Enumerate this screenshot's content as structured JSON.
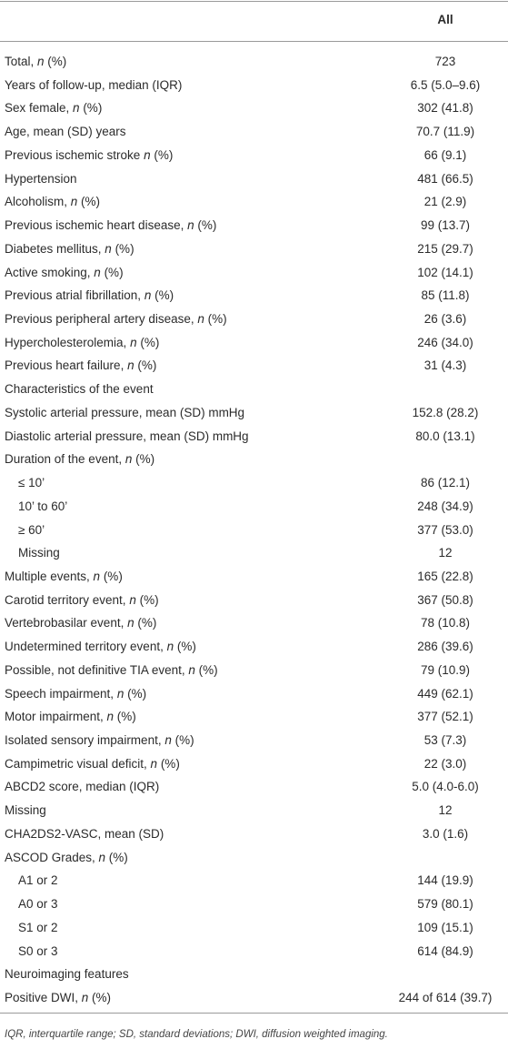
{
  "table": {
    "header": [
      "",
      "All"
    ],
    "rows": [
      [
        "Total, n (%)",
        "723"
      ],
      [
        "Years of follow-up, median (IQR)",
        "6.5 (5.0–9.6)"
      ],
      [
        "Sex female, n (%)",
        "302 (41.8)"
      ],
      [
        "Age, mean (SD) years",
        "70.7 (11.9)"
      ],
      [
        "Previous ischemic stroke n (%)",
        "66 (9.1)"
      ],
      [
        "Hypertension",
        "481 (66.5)"
      ],
      [
        "Alcoholism, n (%)",
        "21 (2.9)"
      ],
      [
        "Previous ischemic heart disease, n (%)",
        "99 (13.7)"
      ],
      [
        "Diabetes mellitus, n (%)",
        "215 (29.7)"
      ],
      [
        "Active smoking, n (%)",
        "102 (14.1)"
      ],
      [
        "Previous atrial fibrillation, n (%)",
        "85 (11.8)"
      ],
      [
        "Previous peripheral artery disease, n (%)",
        "26 (3.6)"
      ],
      [
        "Hypercholesterolemia, n (%)",
        "246 (34.0)"
      ],
      [
        "Previous heart failure, n (%)",
        "31 (4.3)"
      ],
      [
        "Characteristics of the event",
        ""
      ],
      [
        "Systolic arterial pressure, mean (SD) mmHg",
        "152.8 (28.2)"
      ],
      [
        "Diastolic arterial pressure, mean (SD) mmHg",
        "80.0 (13.1)"
      ],
      [
        "Duration of the event, n (%)",
        ""
      ],
      [
        "≤ 10’",
        "86 (12.1)"
      ],
      [
        "10’ to 60’",
        "248 (34.9)"
      ],
      [
        "≥ 60’",
        "377 (53.0)"
      ],
      [
        "Missing",
        "12"
      ],
      [
        "Multiple events, n (%)",
        "165 (22.8)"
      ],
      [
        "Carotid territory event, n (%)",
        "367 (50.8)"
      ],
      [
        "Vertebrobasilar event, n (%)",
        "78 (10.8)"
      ],
      [
        "Undetermined territory event, n (%)",
        "286 (39.6)"
      ],
      [
        "Possible, not definitive TIA event, n (%)",
        "79 (10.9)"
      ],
      [
        "Speech impairment, n (%)",
        "449 (62.1)"
      ],
      [
        "Motor impairment, n (%)",
        "377 (52.1)"
      ],
      [
        "Isolated sensory impairment, n (%)",
        "53 (7.3)"
      ],
      [
        "Campimetric visual deficit, n (%)",
        "22 (3.0)"
      ],
      [
        "ABCD2 score, median (IQR)",
        "5.0 (4.0-6.0)"
      ],
      [
        "Missing",
        "12"
      ],
      [
        "CHA2DS2-VASC, mean (SD)",
        "3.0 (1.6)"
      ],
      [
        "ASCOD Grades, n (%)",
        ""
      ],
      [
        "A1 or 2",
        "144 (19.9)"
      ],
      [
        "A0 or 3",
        "579 (80.1)"
      ],
      [
        "S1 or 2",
        "109 (15.1)"
      ],
      [
        "S0 or 3",
        "614 (84.9)"
      ],
      [
        "Neuroimaging features",
        ""
      ],
      [
        "Positive DWI, n (%)",
        "244 of 614 (39.7)"
      ]
    ],
    "footnote": "IQR, interquartile range; SD, standard deviations; DWI, diffusion weighted imaging."
  }
}
